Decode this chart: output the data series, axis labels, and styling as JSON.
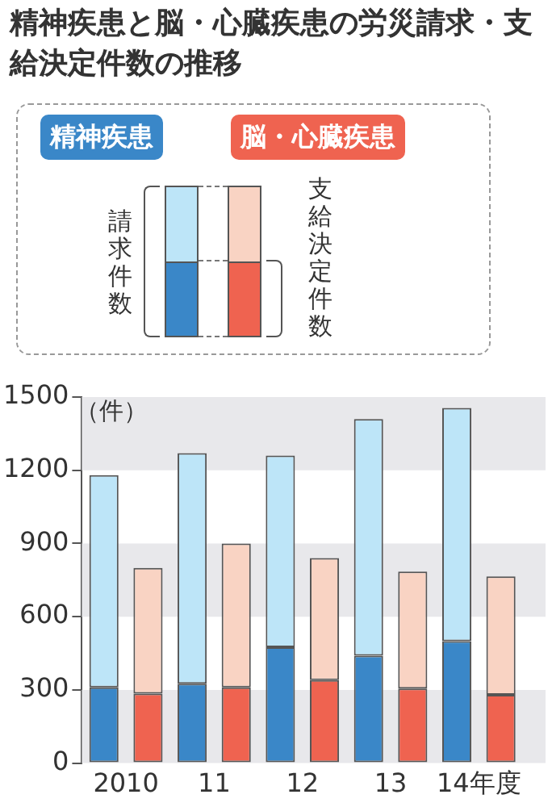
{
  "chart_data": {
    "type": "bar",
    "title": "精神疾患と脳・心臓疾患の労災請求・支給決定件数の推移",
    "ylabel": "（件）",
    "categories": [
      "2010",
      null,
      "11",
      null,
      "12",
      null,
      "13",
      null,
      "14年度",
      null
    ],
    "stacked": true,
    "series": [
      {
        "colors": [
          "#3a87c8",
          "#ef6350",
          "#3a87c8",
          "#ef6350",
          "#3a87c8",
          "#ef6350",
          "#3a87c8",
          "#ef6350",
          "#3a87c8",
          "#ef6350"
        ],
        "values": [
          310,
          285,
          325,
          310,
          475,
          340,
          440,
          305,
          500,
          280
        ]
      },
      {
        "colors": [
          "#bde5f8",
          "#f9d3c3",
          "#bde5f8",
          "#f9d3c3",
          "#bde5f8",
          "#f9d3c3",
          "#bde5f8",
          "#f9d3c3",
          "#bde5f8",
          "#f9d3c3"
        ],
        "values": [
          870,
          515,
          945,
          590,
          785,
          500,
          970,
          480,
          955,
          485
        ]
      }
    ],
    "annotations": [
      "精神疾患",
      "脳・心臓疾患",
      "請求件数",
      "支給決定件数"
    ],
    "ylim": [
      0,
      1500
    ],
    "yticks": [
      0,
      300,
      600,
      900,
      1200,
      1500
    ],
    "bands": [
      {
        "axis": "y",
        "from": 0,
        "to": 300,
        "color": "#e8e8eb"
      },
      {
        "axis": "y",
        "from": 600,
        "to": 900,
        "color": "#e8e8eb"
      },
      {
        "axis": "y",
        "from": 1200,
        "to": 1500,
        "color": "#e8e8eb"
      }
    ],
    "grid": false
  }
}
